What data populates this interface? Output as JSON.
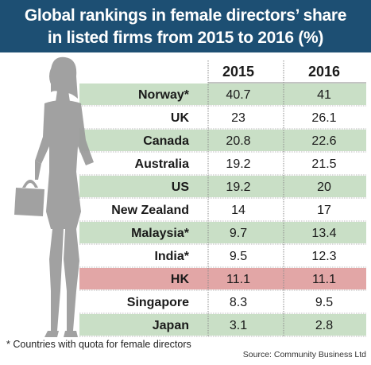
{
  "title_line1": "Global rankings in female directors’ share",
  "title_line2": "in listed firms from 2015 to 2016 (%)",
  "footnote": "* Countries with quota for female directors",
  "source": "Source: Community Business Ltd",
  "colors": {
    "title_bg": "#1d4f73",
    "green_row": "#c9dfc6",
    "highlight_row": "#e2a6a6",
    "silhouette": "#9a9a9a"
  },
  "chart_data": {
    "type": "table",
    "columns": [
      "2015",
      "2016"
    ],
    "rows": [
      {
        "country": "Norway*",
        "v2015": "40.7",
        "v2016": "41",
        "shade": "green"
      },
      {
        "country": "UK",
        "v2015": "23",
        "v2016": "26.1",
        "shade": "none"
      },
      {
        "country": "Canada",
        "v2015": "20.8",
        "v2016": "22.6",
        "shade": "green"
      },
      {
        "country": "Australia",
        "v2015": "19.2",
        "v2016": "21.5",
        "shade": "none"
      },
      {
        "country": "US",
        "v2015": "19.2",
        "v2016": "20",
        "shade": "green"
      },
      {
        "country": "New Zealand",
        "v2015": "14",
        "v2016": "17",
        "shade": "none"
      },
      {
        "country": "Malaysia*",
        "v2015": "9.7",
        "v2016": "13.4",
        "shade": "green"
      },
      {
        "country": "India*",
        "v2015": "9.5",
        "v2016": "12.3",
        "shade": "none"
      },
      {
        "country": "HK",
        "v2015": "11.1",
        "v2016": "11.1",
        "shade": "highlight"
      },
      {
        "country": "Singapore",
        "v2015": "8.3",
        "v2016": "9.5",
        "shade": "none"
      },
      {
        "country": "Japan",
        "v2015": "3.1",
        "v2016": "2.8",
        "shade": "green"
      }
    ]
  }
}
